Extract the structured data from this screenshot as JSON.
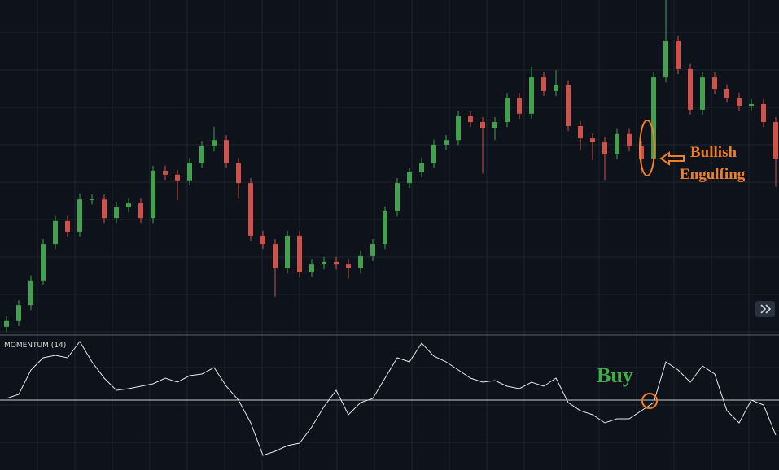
{
  "chart_data": {
    "type": "candlestick",
    "grid": true,
    "ylim": [
      0,
      100
    ],
    "up_color": "#43a04f",
    "down_color": "#d0504a",
    "open": [
      2.0,
      3.7,
      8.5,
      15.9,
      26.8,
      33.7,
      30.5,
      40.2,
      40.2,
      34.6,
      37.8,
      39.0,
      34.6,
      48.8,
      47.6,
      45.9,
      51.2,
      56.1,
      58.0,
      51.2,
      45.1,
      29.3,
      26.8,
      19.5,
      29.3,
      18.3,
      20.7,
      21.5,
      20.7,
      19.5,
      23.2,
      26.8,
      36.6,
      45.1,
      48.3,
      51.2,
      56.6,
      58.0,
      65.1,
      63.4,
      61.5,
      63.4,
      70.7,
      65.9,
      76.8,
      72.7,
      74.4,
      62.2,
      58.5,
      57.3,
      53.7,
      59.8,
      56.1,
      52.4,
      76.8,
      87.8,
      79.3,
      67.1,
      76.8,
      73.2,
      70.7,
      68.3,
      68.8,
      63.4
    ],
    "high": [
      5.2,
      10.0,
      17.4,
      28.3,
      35.2,
      35.2,
      42.0,
      41.7,
      41.7,
      39.3,
      40.5,
      40.5,
      50.3,
      50.3,
      49.1,
      52.7,
      57.6,
      62.0,
      59.5,
      52.7,
      46.6,
      30.8,
      28.3,
      30.8,
      30.8,
      22.2,
      23.0,
      23.0,
      22.2,
      24.7,
      28.3,
      38.1,
      46.6,
      49.8,
      52.7,
      58.1,
      59.5,
      66.6,
      66.6,
      64.9,
      64.9,
      72.2,
      72.2,
      80.0,
      78.3,
      79.0,
      75.9,
      63.7,
      60.0,
      58.8,
      61.3,
      61.3,
      57.6,
      78.3,
      100.0,
      89.3,
      80.8,
      78.3,
      78.3,
      74.7,
      72.2,
      70.3,
      70.3,
      64.9
    ],
    "low": [
      0.5,
      2.2,
      7.0,
      14.4,
      25.3,
      29.0,
      29.0,
      38.7,
      33.1,
      33.1,
      36.3,
      33.1,
      33.1,
      46.1,
      40.0,
      44.4,
      49.7,
      54.6,
      49.7,
      40.5,
      27.8,
      25.3,
      11.0,
      18.0,
      16.8,
      16.8,
      19.2,
      19.2,
      16.5,
      18.0,
      21.7,
      25.3,
      35.1,
      43.6,
      46.8,
      49.7,
      55.1,
      56.5,
      61.9,
      48.0,
      58.0,
      61.9,
      64.4,
      64.4,
      71.2,
      71.2,
      60.7,
      55.0,
      52.0,
      46.0,
      52.2,
      54.6,
      48.0,
      50.9,
      75.3,
      77.8,
      65.6,
      65.6,
      71.7,
      69.2,
      66.8,
      66.8,
      61.9,
      44.0
    ],
    "close": [
      3.7,
      8.5,
      15.9,
      26.8,
      33.7,
      30.5,
      40.2,
      40.2,
      34.6,
      37.8,
      39.0,
      34.6,
      48.8,
      47.6,
      45.9,
      51.2,
      56.1,
      58.0,
      51.2,
      45.1,
      29.3,
      26.8,
      19.5,
      29.3,
      18.3,
      20.7,
      21.5,
      20.7,
      19.5,
      23.2,
      26.8,
      36.6,
      45.1,
      48.3,
      51.2,
      56.6,
      58.0,
      65.1,
      63.4,
      61.5,
      63.4,
      70.7,
      65.9,
      76.8,
      72.7,
      74.4,
      62.2,
      58.5,
      57.3,
      53.7,
      59.8,
      56.1,
      52.4,
      76.8,
      87.8,
      79.3,
      67.1,
      76.8,
      73.2,
      70.7,
      68.3,
      68.8,
      63.4,
      52.4
    ],
    "indicator": {
      "type": "line",
      "title": "MOMENTUM (14)",
      "color": "#e6e6e6",
      "ylim": [
        -86,
        80
      ],
      "values": [
        2,
        7,
        37,
        52,
        55,
        52,
        72,
        47,
        27,
        12,
        14,
        17,
        20,
        27,
        22,
        30,
        32,
        40,
        17,
        0,
        -28,
        -68,
        -63,
        -56,
        -53,
        -33,
        -8,
        12,
        -18,
        -3,
        2,
        27,
        52,
        47,
        70,
        54,
        47,
        37,
        27,
        22,
        24,
        17,
        14,
        22,
        17,
        27,
        -3,
        -13,
        -18,
        -28,
        -23,
        -23,
        -13,
        -3,
        47,
        37,
        22,
        42,
        32,
        -13,
        -28,
        0,
        -6,
        -43
      ]
    },
    "annotations": {
      "pattern": [
        "Bullish",
        "Engulfing"
      ],
      "signal": "Buy"
    }
  }
}
